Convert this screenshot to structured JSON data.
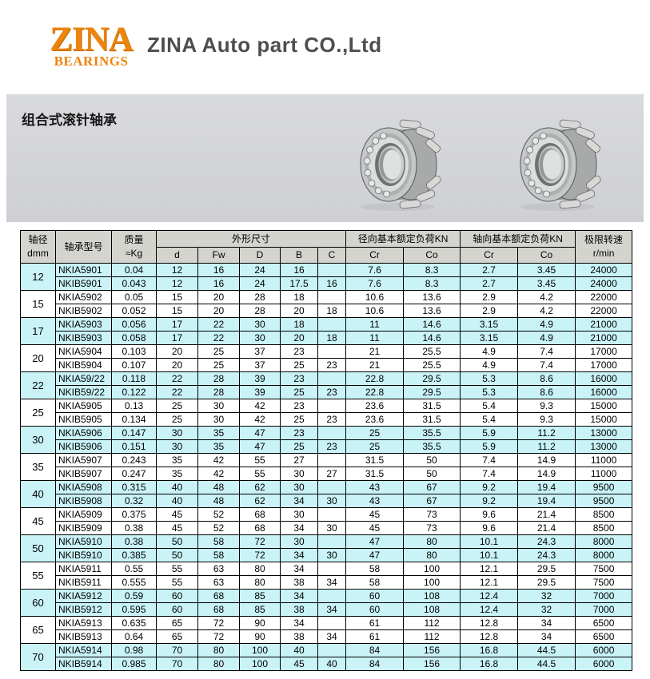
{
  "header": {
    "logo_title": "ZINA",
    "logo_subtitle": "BEARINGS",
    "company_name": "ZINA Auto part CO.,Ltd"
  },
  "banner": {
    "title": "组合式滚针轴承"
  },
  "table": {
    "header": {
      "size_label": "轴径",
      "size_unit": "dmm",
      "model": "轴承型号",
      "mass_label": "质量",
      "mass_unit": "≈Kg",
      "group_dims": "外形尺寸",
      "group_radial": "径向基本额定负荷KN",
      "group_axial": "轴向基本额定负荷KN",
      "speed_label": "极限转速",
      "speed_unit": "r/min",
      "dim_cols": [
        "d",
        "Fw",
        "D",
        "B",
        "C"
      ],
      "radial_cols": [
        "Cr",
        "Co"
      ],
      "axial_cols": [
        "Cr",
        "Co"
      ]
    },
    "column_semantics": [
      "model",
      "mass",
      "dim-d",
      "dim-fw",
      "dim-outer-d",
      "dim-b",
      "dim-c",
      "radial-cr",
      "radial-co",
      "axial-cr",
      "axial-co",
      "speed"
    ],
    "groups": [
      {
        "size": "12",
        "shade": "cyan",
        "rows": [
          [
            "NKIA5901",
            "0.04",
            "12",
            "16",
            "24",
            "16",
            "",
            "7.6",
            "8.3",
            "2.7",
            "3.45",
            "24000"
          ],
          [
            "NKIB5901",
            "0.043",
            "12",
            "16",
            "24",
            "17.5",
            "16",
            "7.6",
            "8.3",
            "2.7",
            "3.45",
            "24000"
          ]
        ]
      },
      {
        "size": "15",
        "shade": "white",
        "rows": [
          [
            "NKIA5902",
            "0.05",
            "15",
            "20",
            "28",
            "18",
            "",
            "10.6",
            "13.6",
            "2.9",
            "4.2",
            "22000"
          ],
          [
            "NKIB5902",
            "0.052",
            "15",
            "20",
            "28",
            "20",
            "18",
            "10.6",
            "13.6",
            "2.9",
            "4.2",
            "22000"
          ]
        ]
      },
      {
        "size": "17",
        "shade": "cyan",
        "rows": [
          [
            "NKIA5903",
            "0.056",
            "17",
            "22",
            "30",
            "18",
            "",
            "11",
            "14.6",
            "3.15",
            "4.9",
            "21000"
          ],
          [
            "NKIB5903",
            "0.058",
            "17",
            "22",
            "30",
            "20",
            "18",
            "11",
            "14.6",
            "3.15",
            "4.9",
            "21000"
          ]
        ]
      },
      {
        "size": "20",
        "shade": "white",
        "rows": [
          [
            "NKIA5904",
            "0.103",
            "20",
            "25",
            "37",
            "23",
            "",
            "21",
            "25.5",
            "4.9",
            "7.4",
            "17000"
          ],
          [
            "NKIB5904",
            "0.107",
            "20",
            "25",
            "37",
            "25",
            "23",
            "21",
            "25.5",
            "4.9",
            "7.4",
            "17000"
          ]
        ]
      },
      {
        "size": "22",
        "shade": "cyan",
        "rows": [
          [
            "NKIA59/22",
            "0.118",
            "22",
            "28",
            "39",
            "23",
            "",
            "22.8",
            "29.5",
            "5.3",
            "8.6",
            "16000"
          ],
          [
            "NKIB59/22",
            "0.122",
            "22",
            "28",
            "39",
            "25",
            "23",
            "22.8",
            "29.5",
            "5.3",
            "8.6",
            "16000"
          ]
        ]
      },
      {
        "size": "25",
        "shade": "white",
        "rows": [
          [
            "NKIA5905",
            "0.13",
            "25",
            "30",
            "42",
            "23",
            "",
            "23.6",
            "31.5",
            "5.4",
            "9.3",
            "15000"
          ],
          [
            "NKIB5905",
            "0.134",
            "25",
            "30",
            "42",
            "25",
            "23",
            "23.6",
            "31.5",
            "5.4",
            "9.3",
            "15000"
          ]
        ]
      },
      {
        "size": "30",
        "shade": "cyan",
        "rows": [
          [
            "NKIA5906",
            "0.147",
            "30",
            "35",
            "47",
            "23",
            "",
            "25",
            "35.5",
            "5.9",
            "11.2",
            "13000"
          ],
          [
            "NKIB5906",
            "0.151",
            "30",
            "35",
            "47",
            "25",
            "23",
            "25",
            "35.5",
            "5.9",
            "11.2",
            "13000"
          ]
        ]
      },
      {
        "size": "35",
        "shade": "white",
        "rows": [
          [
            "NKIA5907",
            "0.243",
            "35",
            "42",
            "55",
            "27",
            "",
            "31.5",
            "50",
            "7.4",
            "14.9",
            "11000"
          ],
          [
            "NKIB5907",
            "0.247",
            "35",
            "42",
            "55",
            "30",
            "27",
            "31.5",
            "50",
            "7.4",
            "14.9",
            "11000"
          ]
        ]
      },
      {
        "size": "40",
        "shade": "cyan",
        "rows": [
          [
            "NKIA5908",
            "0.315",
            "40",
            "48",
            "62",
            "30",
            "",
            "43",
            "67",
            "9.2",
            "19.4",
            "9500"
          ],
          [
            "NKIB5908",
            "0.32",
            "40",
            "48",
            "62",
            "34",
            "30",
            "43",
            "67",
            "9.2",
            "19.4",
            "9500"
          ]
        ]
      },
      {
        "size": "45",
        "shade": "white",
        "rows": [
          [
            "NKIA5909",
            "0.375",
            "45",
            "52",
            "68",
            "30",
            "",
            "45",
            "73",
            "9.6",
            "21.4",
            "8500"
          ],
          [
            "NKIB5909",
            "0.38",
            "45",
            "52",
            "68",
            "34",
            "30",
            "45",
            "73",
            "9.6",
            "21.4",
            "8500"
          ]
        ]
      },
      {
        "size": "50",
        "shade": "cyan",
        "rows": [
          [
            "NKIA5910",
            "0.38",
            "50",
            "58",
            "72",
            "30",
            "",
            "47",
            "80",
            "10.1",
            "24.3",
            "8000"
          ],
          [
            "NKIB5910",
            "0.385",
            "50",
            "58",
            "72",
            "34",
            "30",
            "47",
            "80",
            "10.1",
            "24.3",
            "8000"
          ]
        ]
      },
      {
        "size": "55",
        "shade": "white",
        "rows": [
          [
            "NKIA5911",
            "0.55",
            "55",
            "63",
            "80",
            "34",
            "",
            "58",
            "100",
            "12.1",
            "29.5",
            "7500"
          ],
          [
            "NKIB5911",
            "0.555",
            "55",
            "63",
            "80",
            "38",
            "34",
            "58",
            "100",
            "12.1",
            "29.5",
            "7500"
          ]
        ]
      },
      {
        "size": "60",
        "shade": "cyan",
        "rows": [
          [
            "NKIA5912",
            "0.59",
            "60",
            "68",
            "85",
            "34",
            "",
            "60",
            "108",
            "12.4",
            "32",
            "7000"
          ],
          [
            "NKIB5912",
            "0.595",
            "60",
            "68",
            "85",
            "38",
            "34",
            "60",
            "108",
            "12.4",
            "32",
            "7000"
          ]
        ]
      },
      {
        "size": "65",
        "shade": "white",
        "rows": [
          [
            "NKIA5913",
            "0.635",
            "65",
            "72",
            "90",
            "34",
            "",
            "61",
            "112",
            "12.8",
            "34",
            "6500"
          ],
          [
            "NKIB5913",
            "0.64",
            "65",
            "72",
            "90",
            "38",
            "34",
            "61",
            "112",
            "12.8",
            "34",
            "6500"
          ]
        ]
      },
      {
        "size": "70",
        "shade": "cyan",
        "rows": [
          [
            "NKIA5914",
            "0.98",
            "70",
            "80",
            "100",
            "40",
            "",
            "84",
            "156",
            "16.8",
            "44.5",
            "6000"
          ],
          [
            "NKIB5914",
            "0.985",
            "70",
            "80",
            "100",
            "45",
            "40",
            "84",
            "156",
            "16.8",
            "44.5",
            "6000"
          ]
        ]
      }
    ]
  },
  "colors": {
    "accent_orange": "#ED840C",
    "row_cyan": "#C9F3F7",
    "table_header_gray": "#D4D4CF",
    "banner_gray": "#D3D4D8",
    "table_border": "#000000"
  }
}
